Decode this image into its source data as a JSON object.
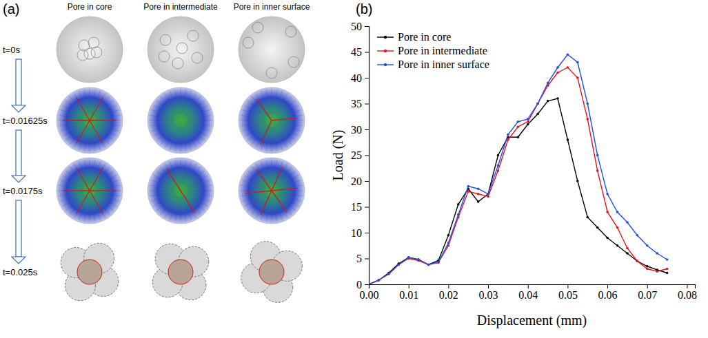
{
  "figure": {
    "panel_a": {
      "label": "(a)",
      "columns": [
        "Pore in core",
        "Pore in intermediate",
        "Pore in inner surface"
      ],
      "rows": [
        "t=0s",
        "t=0.01625s",
        "t=0.0175s",
        "t=0.025s"
      ]
    },
    "panel_b": {
      "label": "(b)"
    }
  },
  "chart_data": {
    "type": "line",
    "x_label": "Displacement (mm)",
    "y_label": "Load (N)",
    "x": [
      0,
      0.0025,
      0.005,
      0.0075,
      0.01,
      0.0125,
      0.015,
      0.0175,
      0.02,
      0.0225,
      0.025,
      0.0275,
      0.03,
      0.0325,
      0.035,
      0.0375,
      0.04,
      0.0425,
      0.045,
      0.0475,
      0.05,
      0.0525,
      0.055,
      0.0575,
      0.06,
      0.0625,
      0.065,
      0.0675,
      0.07,
      0.0725,
      0.075
    ],
    "series": [
      {
        "name": "Pore in core",
        "color": "#000000",
        "values": [
          0,
          0.8,
          2.2,
          4,
          5.2,
          4.8,
          3.8,
          4.6,
          9.5,
          15.5,
          18.5,
          16,
          17.5,
          25,
          28.5,
          28.5,
          31,
          33,
          35.5,
          36,
          28,
          20,
          13,
          11,
          9,
          7.5,
          6,
          4.5,
          3.5,
          2.8,
          2.2
        ]
      },
      {
        "name": "Pore in intermediate",
        "color": "#e8141b",
        "values": [
          0,
          0.8,
          2,
          3.8,
          5,
          4.6,
          3.8,
          4.2,
          7.5,
          13,
          18,
          17.5,
          17,
          22,
          28,
          30.5,
          31.5,
          35,
          38.5,
          41,
          42,
          40,
          32,
          22,
          14,
          11,
          7,
          4.5,
          3,
          2.5,
          3
        ]
      },
      {
        "name": "Pore in inner surface",
        "color": "#1f4fe0",
        "values": [
          0,
          0.8,
          2,
          3.8,
          5.2,
          4.8,
          3.8,
          4.3,
          8,
          13.5,
          19,
          18.5,
          17.5,
          23,
          29,
          31.5,
          32,
          35,
          39,
          42,
          44.5,
          43,
          35,
          25,
          17.5,
          14,
          12,
          9.5,
          7.5,
          6,
          4.8
        ]
      }
    ],
    "xlim": [
      0,
      0.082
    ],
    "xticks": [
      {
        "value": 0,
        "label": "0.00"
      },
      {
        "value": 0.01,
        "label": "0.01"
      },
      {
        "value": 0.02,
        "label": "0.02"
      },
      {
        "value": 0.03,
        "label": "0.03"
      },
      {
        "value": 0.04,
        "label": "0.04"
      },
      {
        "value": 0.05,
        "label": "0.05"
      },
      {
        "value": 0.06,
        "label": "0.06"
      },
      {
        "value": 0.07,
        "label": "0.07"
      },
      {
        "value": 0.08,
        "label": "0.08"
      }
    ],
    "ylim": [
      0,
      50
    ],
    "yticks": [
      0,
      5,
      10,
      15,
      20,
      25,
      30,
      35,
      40,
      45,
      50
    ],
    "marker": "circle",
    "legend": "upper left",
    "grid": false
  }
}
